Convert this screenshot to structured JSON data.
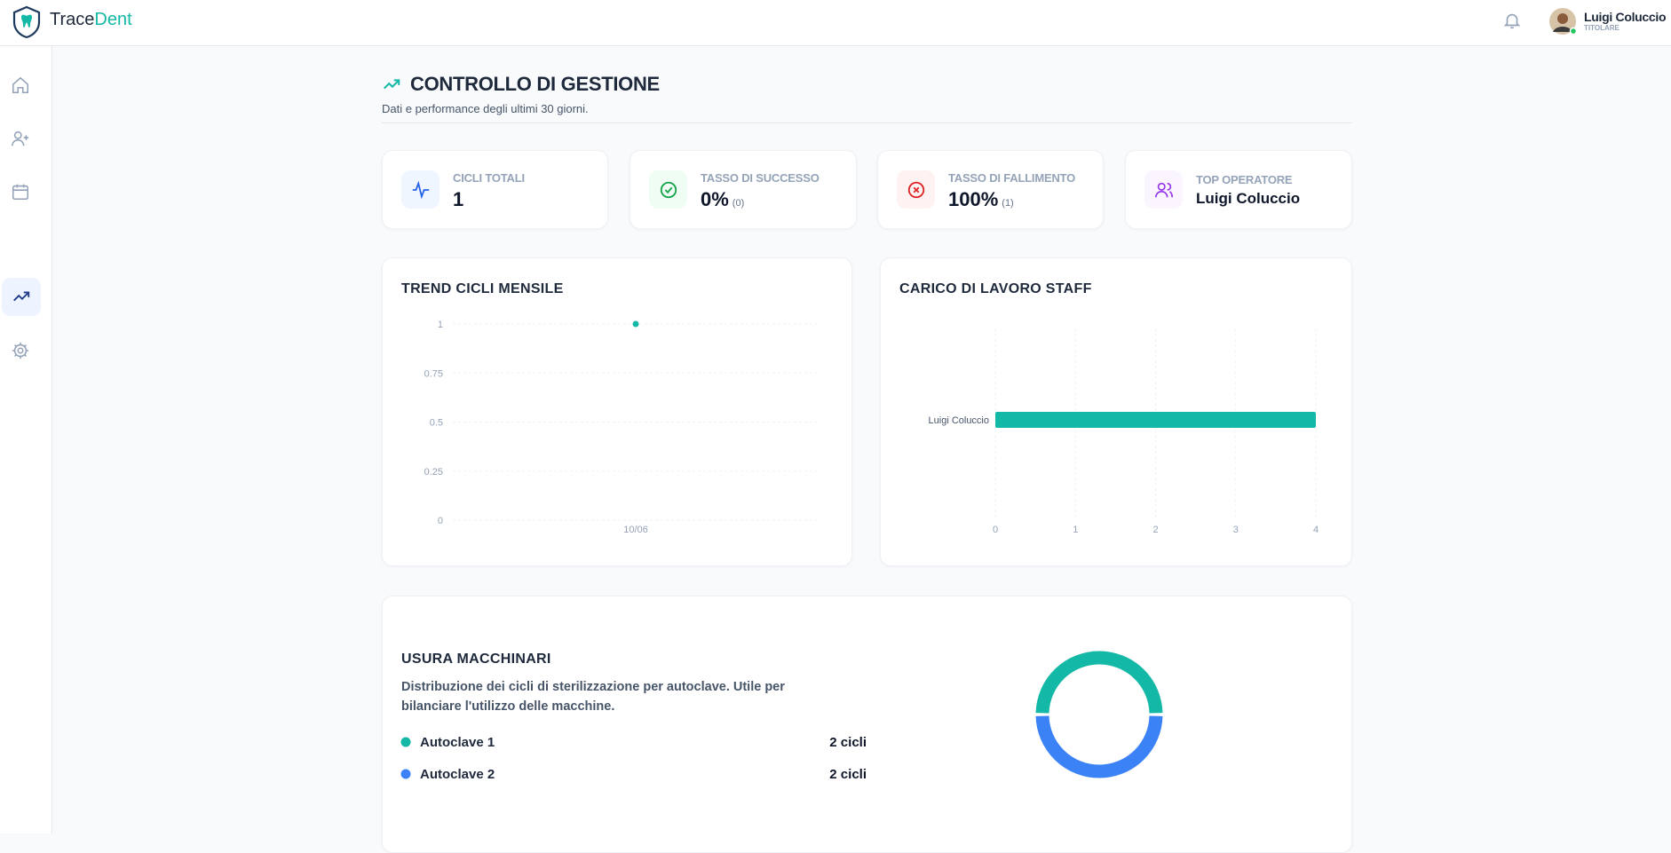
{
  "header": {
    "brand_first": "Trace",
    "brand_second": "Dent",
    "user_name": "Luigi Coluccio",
    "user_role": "TITOLARE"
  },
  "page": {
    "title": "CONTROLLO DI GESTIONE",
    "subtitle": "Dati e performance degli ultimi 30 giorni."
  },
  "stats": [
    {
      "label": "CICLI TOTALI",
      "value": "1"
    },
    {
      "label": "TASSO DI SUCCESSO",
      "value": "0%",
      "note": "(0)"
    },
    {
      "label": "TASSO DI FALLIMENTO",
      "value": "100%",
      "note": "(1)"
    },
    {
      "label": "TOP OPERATORE",
      "value": "Luigi Coluccio"
    }
  ],
  "chart_data": [
    {
      "type": "line",
      "title": "TREND CICLI MENSILE",
      "categories": [
        "10/06"
      ],
      "values": [
        1
      ],
      "color": "#14b8a6",
      "ylim": [
        0,
        1
      ],
      "yticks": [
        0,
        0.25,
        0.5,
        0.75,
        1
      ],
      "grid": true
    },
    {
      "type": "bar",
      "orientation": "horizontal",
      "title": "CARICO DI LAVORO STAFF",
      "categories": [
        "Luigi Coluccio"
      ],
      "values": [
        4
      ],
      "color": "#14b8a6",
      "xlim": [
        0,
        4
      ],
      "xticks": [
        0,
        1,
        2,
        3,
        4
      ],
      "grid": true
    },
    {
      "type": "pie",
      "title": "USURA MACCHINARI",
      "description": "Distribuzione dei cicli di sterilizzazione per autoclave. Utile per bilanciare l'utilizzo delle macchine.",
      "categories": [
        "Autoclave 1",
        "Autoclave 2"
      ],
      "values": [
        2,
        2
      ],
      "value_labels": [
        "2 cicli",
        "2 cicli"
      ],
      "colors": [
        "#14b8a6",
        "#3b82f6"
      ]
    }
  ]
}
